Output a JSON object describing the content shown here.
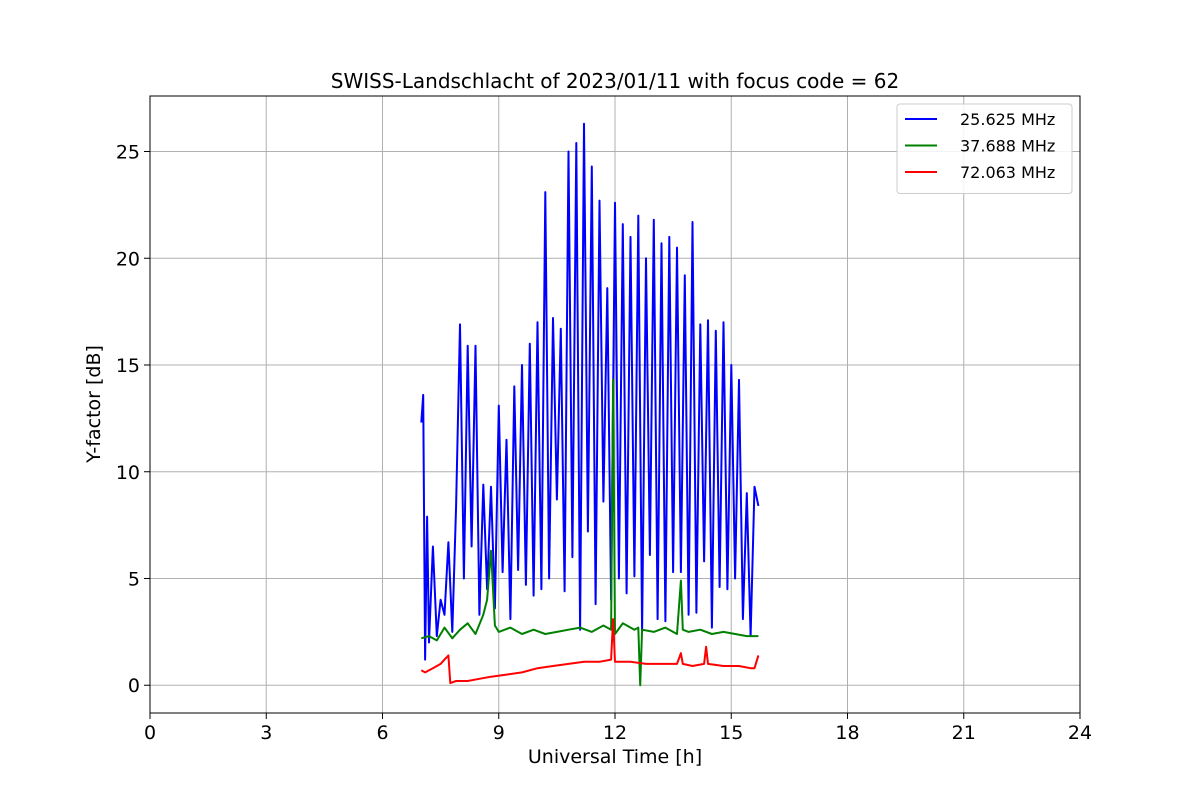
{
  "chart_data": {
    "type": "line",
    "title": "SWISS-Landschlacht of 2023/01/11 with focus code = 62",
    "xlabel": "Universal Time [h]",
    "ylabel": "Y-factor [dB]",
    "xlim": [
      0,
      24
    ],
    "ylim": [
      -1.3,
      27.6
    ],
    "xticks": [
      0,
      3,
      6,
      9,
      12,
      15,
      18,
      21,
      24
    ],
    "xtick_labels": [
      "0",
      "3",
      "6",
      "9",
      "12",
      "15",
      "18",
      "21",
      "24"
    ],
    "yticks": [
      0,
      5,
      10,
      15,
      20,
      25
    ],
    "ytick_labels": [
      "0",
      "5",
      "10",
      "15",
      "20",
      "25"
    ],
    "grid": true,
    "legend_position": "top-right",
    "series": [
      {
        "name": "25.625 MHz",
        "color": "#0000ff",
        "x": [
          7.0,
          7.05,
          7.1,
          7.15,
          7.2,
          7.3,
          7.4,
          7.5,
          7.6,
          7.7,
          7.8,
          7.9,
          8.0,
          8.1,
          8.2,
          8.3,
          8.4,
          8.5,
          8.6,
          8.7,
          8.8,
          8.9,
          9.0,
          9.1,
          9.2,
          9.3,
          9.4,
          9.5,
          9.6,
          9.7,
          9.8,
          9.9,
          10.0,
          10.1,
          10.2,
          10.3,
          10.4,
          10.5,
          10.6,
          10.7,
          10.8,
          10.9,
          11.0,
          11.1,
          11.2,
          11.3,
          11.4,
          11.5,
          11.6,
          11.7,
          11.8,
          11.9,
          12.0,
          12.1,
          12.2,
          12.3,
          12.4,
          12.5,
          12.6,
          12.7,
          12.8,
          12.9,
          13.0,
          13.1,
          13.2,
          13.3,
          13.4,
          13.5,
          13.6,
          13.7,
          13.8,
          13.9,
          14.0,
          14.1,
          14.2,
          14.3,
          14.4,
          14.5,
          14.6,
          14.7,
          14.8,
          14.9,
          15.0,
          15.1,
          15.2,
          15.3,
          15.4,
          15.5,
          15.6,
          15.7
        ],
        "values": [
          12.3,
          13.6,
          1.2,
          7.9,
          2.0,
          6.5,
          2.3,
          4.0,
          3.3,
          6.7,
          2.5,
          8.4,
          16.9,
          5.0,
          15.9,
          6.5,
          15.9,
          3.3,
          9.4,
          4.5,
          9.3,
          3.6,
          13.1,
          5.3,
          11.5,
          3.1,
          14.0,
          5.4,
          15.0,
          4.7,
          16.0,
          4.2,
          17.0,
          4.5,
          23.1,
          5.0,
          17.2,
          8.7,
          16.7,
          4.4,
          25.0,
          6.0,
          25.4,
          2.6,
          26.3,
          7.2,
          24.3,
          3.8,
          22.7,
          8.6,
          18.6,
          4.0,
          22.6,
          5.0,
          21.6,
          4.3,
          21.0,
          5.1,
          22.0,
          2.5,
          20.0,
          6.1,
          21.8,
          3.1,
          20.7,
          3.0,
          21.0,
          5.3,
          20.5,
          5.3,
          19.2,
          3.3,
          21.7,
          3.4,
          16.9,
          5.8,
          17.1,
          2.7,
          16.6,
          4.6,
          17.0,
          4.5,
          15.0,
          5.0,
          14.3,
          3.1,
          9.0,
          2.3,
          9.3,
          8.4
        ]
      },
      {
        "name": "37.688 MHz",
        "color": "#008000",
        "x": [
          7.0,
          7.2,
          7.4,
          7.6,
          7.8,
          8.0,
          8.2,
          8.4,
          8.6,
          8.7,
          8.8,
          8.9,
          9.0,
          9.3,
          9.6,
          9.9,
          10.2,
          10.5,
          10.8,
          11.1,
          11.4,
          11.7,
          11.9,
          11.95,
          12.0,
          12.2,
          12.5,
          12.6,
          12.65,
          12.7,
          13.0,
          13.3,
          13.6,
          13.7,
          13.75,
          13.9,
          14.2,
          14.5,
          14.8,
          15.1,
          15.4,
          15.7
        ],
        "values": [
          2.2,
          2.3,
          2.1,
          2.7,
          2.2,
          2.6,
          2.9,
          2.4,
          3.3,
          4.0,
          6.3,
          2.8,
          2.5,
          2.7,
          2.4,
          2.6,
          2.4,
          2.5,
          2.6,
          2.7,
          2.5,
          2.8,
          2.6,
          14.3,
          2.4,
          2.9,
          2.6,
          2.7,
          0.0,
          2.6,
          2.5,
          2.7,
          2.4,
          4.9,
          2.6,
          2.5,
          2.6,
          2.4,
          2.5,
          2.4,
          2.3,
          2.3
        ]
      },
      {
        "name": "72.063 MHz",
        "color": "#ff0000",
        "x": [
          7.0,
          7.1,
          7.3,
          7.5,
          7.6,
          7.7,
          7.75,
          7.9,
          8.2,
          8.5,
          8.8,
          9.2,
          9.6,
          10.0,
          10.4,
          10.8,
          11.2,
          11.6,
          11.9,
          11.95,
          12.0,
          12.4,
          12.8,
          13.2,
          13.6,
          13.7,
          13.75,
          14.0,
          14.3,
          14.35,
          14.4,
          14.8,
          15.2,
          15.5,
          15.6,
          15.7
        ],
        "values": [
          0.7,
          0.6,
          0.8,
          1.0,
          1.2,
          1.4,
          0.1,
          0.2,
          0.2,
          0.3,
          0.4,
          0.5,
          0.6,
          0.8,
          0.9,
          1.0,
          1.1,
          1.1,
          1.2,
          3.1,
          1.1,
          1.1,
          1.0,
          1.0,
          1.0,
          1.5,
          1.0,
          0.9,
          1.0,
          1.8,
          1.0,
          0.9,
          0.9,
          0.8,
          0.8,
          1.4
        ]
      }
    ]
  }
}
